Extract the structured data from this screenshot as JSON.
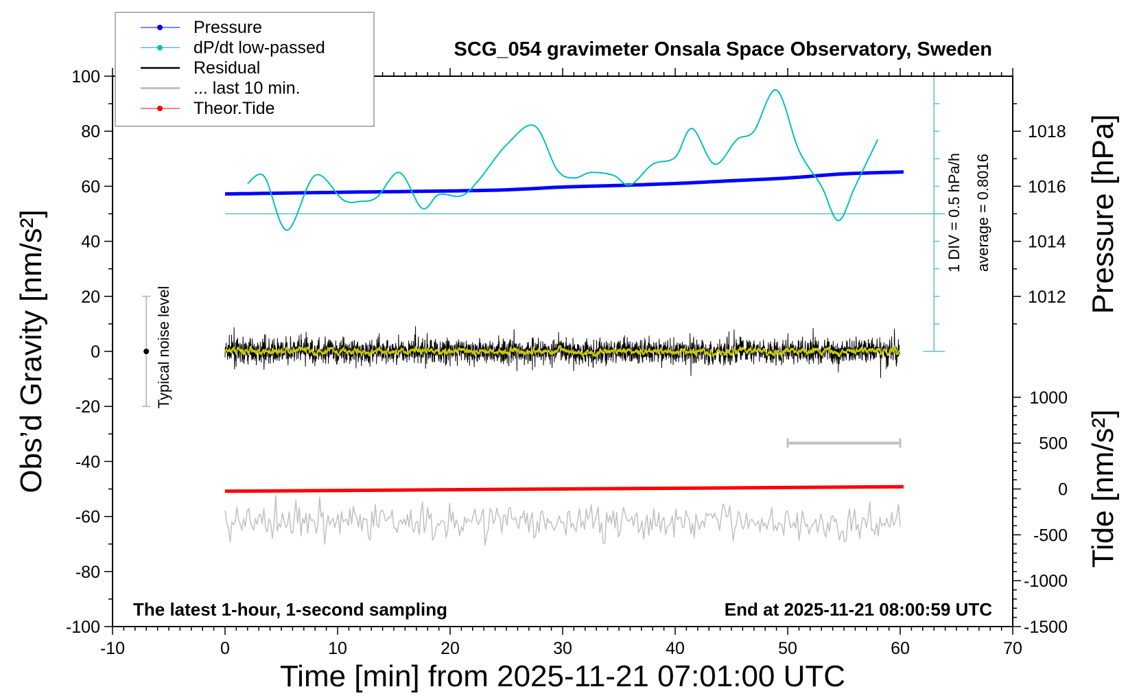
{
  "chart_data": {
    "type": "line",
    "title": "SCG_054 gravimeter Onsala Space Observatory, Sweden",
    "xlabel": "Time [min] from 2025-11-21 07:01:00 UTC",
    "ylabel": "Obs’d Gravity [nm/s²]",
    "ylabel_right_top": "Pressure [hPa]",
    "ylabel_right_bottom": "Tide [nm/s²]",
    "xlim": [
      -10,
      70
    ],
    "ylim": [
      -100,
      100
    ],
    "x_ticks": [
      "-10",
      "0",
      "10",
      "20",
      "30",
      "40",
      "50",
      "60",
      "70"
    ],
    "y_ticks": [
      "100",
      "80",
      "60",
      "40",
      "20",
      "0",
      "-20",
      "-40",
      "-60",
      "-80",
      "-100"
    ],
    "pressure_ticks": [
      "1018",
      "1016",
      "1014",
      "1012"
    ],
    "tide_ticks": [
      "1000",
      "500",
      "0",
      "-500",
      "-1000",
      "-1500"
    ],
    "annotation_left": "The latest 1-hour, 1-second sampling",
    "annotation_right": "End at 2025-11-21 08:00:59 UTC",
    "noise_label": "Typical noise level",
    "noise_range": [
      -20,
      20
    ],
    "dpdt_scale_label": "1 DIV = 0.5 hPa/h",
    "dpdt_average_label": "average = 0.8016",
    "legend": {
      "placement": "top-left",
      "items": [
        "Pressure",
        "dP/dt low-passed",
        "Residual",
        "... last 10 min.",
        "Theor.Tide"
      ]
    },
    "colors": {
      "pressure": "#0000ff",
      "dpdt": "#00c0c0",
      "residual": "#000000",
      "smoothed": "#c8c800",
      "last10": "#c0c0c0",
      "tide": "#ff0000",
      "dpdt_axis": "#5fbfbf"
    },
    "series": {
      "pressure_hPa": {
        "x": [
          0,
          10,
          20,
          25,
          30,
          35,
          40,
          45,
          50,
          55,
          60.3
        ],
        "y": [
          1015.72,
          1015.78,
          1015.83,
          1015.87,
          1015.97,
          1016.03,
          1016.1,
          1016.2,
          1016.3,
          1016.45,
          1016.52
        ]
      },
      "dpdt_hPa_per_h": {
        "x": [
          2,
          3.5,
          5.5,
          8,
          10.5,
          12,
          13.5,
          15.5,
          17.5,
          19,
          21,
          22.5,
          25,
          27.5,
          29.5,
          31,
          32.5,
          34.5,
          36,
          38,
          40,
          41.5,
          43.5,
          45.5,
          47,
          49,
          51,
          53,
          54.5,
          56,
          58
        ],
        "y": [
          0.55,
          0.675,
          -0.3,
          0.7,
          0.25,
          0.225,
          0.3,
          0.75,
          0.1,
          0.35,
          0.325,
          0.6,
          1.25,
          1.6,
          0.8,
          0.65,
          0.75,
          0.7,
          0.525,
          0.9,
          1.025,
          1.55,
          0.9,
          1.35,
          1.5,
          2.25,
          1.15,
          0.5,
          -0.125,
          0.5,
          1.35
        ]
      },
      "residual_nm_s2": {
        "x_range": [
          0,
          60
        ],
        "level": 0
      },
      "last_10_min": {
        "x_range": [
          0,
          60
        ],
        "level": -62,
        "scale_bar_x": [
          50,
          60
        ]
      },
      "tide_nm_s2": {
        "x": [
          0,
          60.3
        ],
        "y": [
          -25,
          25
        ]
      }
    }
  }
}
